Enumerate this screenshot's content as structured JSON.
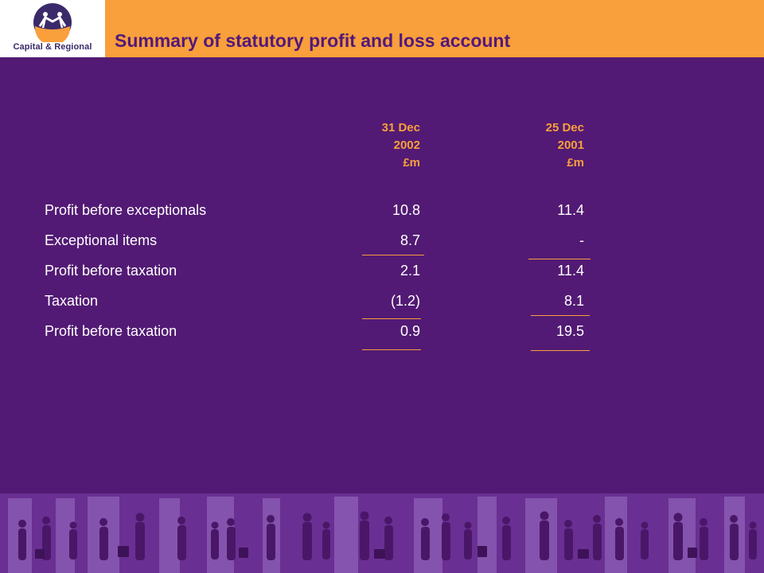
{
  "header": {
    "logo_text": "Capital & Regional",
    "title": "Summary of statutory profit and loss account"
  },
  "table": {
    "columns": [
      {
        "line1": "31 Dec",
        "line2": "2002",
        "unit": "£m"
      },
      {
        "line1": "25 Dec",
        "line2": "2001",
        "unit": "£m"
      }
    ],
    "rows": [
      {
        "label": "Profit before exceptionals",
        "values": [
          "10.8",
          "11.4"
        ]
      },
      {
        "label": "Exceptional items",
        "values": [
          "8.7",
          "-"
        ]
      },
      {
        "label": "Profit before taxation",
        "values": [
          "2.1",
          "11.4"
        ]
      },
      {
        "label": "Taxation",
        "values": [
          "(1.2)",
          "8.1"
        ]
      },
      {
        "label": "Profit before taxation",
        "values": [
          "0.9",
          "19.5"
        ]
      }
    ]
  },
  "colors": {
    "background": "#521a74",
    "header": "#f99f3b",
    "accent": "#f99f3b",
    "title": "#52197a"
  }
}
